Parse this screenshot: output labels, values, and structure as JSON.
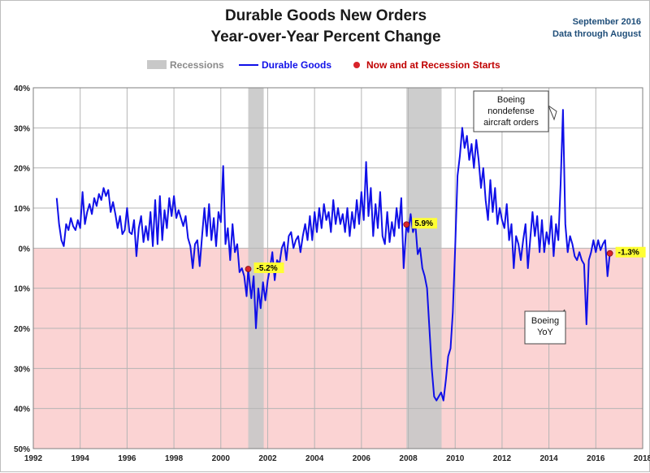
{
  "header": {
    "title_line1": "Durable Goods New Orders",
    "title_line2": "Year-over-Year Percent Change",
    "note_line1": "September 2016",
    "note_line2": "Data through August"
  },
  "legend": {
    "recessions": "Recessions",
    "series": "Durable Goods",
    "markers": "Now and at Recession Starts"
  },
  "colors": {
    "line": "#1010e8",
    "recession": "#c8c8c8",
    "negative_zone": "#fbd3d3",
    "marker": "#d8242a",
    "marker_label_bg": "#ffff33",
    "recession_text": "#8a8a8a",
    "markers_text": "#c00000"
  },
  "chart_data": {
    "type": "line",
    "title": "Durable Goods New Orders Year-over-Year Percent Change",
    "xlim": [
      1992,
      2018
    ],
    "ylim": [
      -50,
      40
    ],
    "x_ticks": [
      "1992",
      "1994",
      "1996",
      "1998",
      "2000",
      "2002",
      "2004",
      "2006",
      "2008",
      "2010",
      "2012",
      "2014",
      "2016",
      "2018"
    ],
    "y_ticks": [
      {
        "value": 40,
        "label": "40%"
      },
      {
        "value": 30,
        "label": "30%"
      },
      {
        "value": 20,
        "label": "20%"
      },
      {
        "value": 10,
        "label": "10%"
      },
      {
        "value": 0,
        "label": "0%"
      },
      {
        "value": -10,
        "label": "10%"
      },
      {
        "value": -20,
        "label": "20%"
      },
      {
        "value": -30,
        "label": "30%"
      },
      {
        "value": -40,
        "label": "40%"
      },
      {
        "value": -50,
        "label": "50%"
      }
    ],
    "grid": true,
    "legend_position": "top-center",
    "recessions": [
      {
        "start": 2001.17,
        "end": 2001.83
      },
      {
        "start": 2007.92,
        "end": 2009.42
      }
    ],
    "series": [
      {
        "name": "Durable Goods",
        "points": [
          [
            1993.0,
            12.5
          ],
          [
            1993.1,
            6
          ],
          [
            1993.2,
            2
          ],
          [
            1993.3,
            0.5
          ],
          [
            1993.4,
            6
          ],
          [
            1993.5,
            4.5
          ],
          [
            1993.6,
            7.5
          ],
          [
            1993.7,
            5.5
          ],
          [
            1993.8,
            4.5
          ],
          [
            1993.9,
            7
          ],
          [
            1994.0,
            5
          ],
          [
            1994.1,
            14
          ],
          [
            1994.2,
            6
          ],
          [
            1994.3,
            9
          ],
          [
            1994.4,
            11
          ],
          [
            1994.5,
            8.5
          ],
          [
            1994.6,
            12.5
          ],
          [
            1994.7,
            10.5
          ],
          [
            1994.8,
            13.5
          ],
          [
            1994.9,
            12
          ],
          [
            1995.0,
            15
          ],
          [
            1995.1,
            13
          ],
          [
            1995.2,
            14.5
          ],
          [
            1995.3,
            9
          ],
          [
            1995.4,
            11.5
          ],
          [
            1995.5,
            8.5
          ],
          [
            1995.6,
            5
          ],
          [
            1995.7,
            8
          ],
          [
            1995.8,
            3.5
          ],
          [
            1995.9,
            4.5
          ],
          [
            1996.0,
            10
          ],
          [
            1996.1,
            4
          ],
          [
            1996.2,
            3.5
          ],
          [
            1996.3,
            7
          ],
          [
            1996.4,
            -2
          ],
          [
            1996.5,
            5
          ],
          [
            1996.6,
            8
          ],
          [
            1996.7,
            1.5
          ],
          [
            1996.8,
            5.5
          ],
          [
            1996.9,
            2
          ],
          [
            1997.0,
            9
          ],
          [
            1997.1,
            0.5
          ],
          [
            1997.2,
            12
          ],
          [
            1997.3,
            1
          ],
          [
            1997.4,
            13
          ],
          [
            1997.5,
            2
          ],
          [
            1997.6,
            9.5
          ],
          [
            1997.7,
            5
          ],
          [
            1997.8,
            12.5
          ],
          [
            1997.9,
            8
          ],
          [
            1998.0,
            13
          ],
          [
            1998.1,
            7.5
          ],
          [
            1998.2,
            9.5
          ],
          [
            1998.3,
            7.5
          ],
          [
            1998.4,
            5.5
          ],
          [
            1998.5,
            8
          ],
          [
            1998.6,
            2.5
          ],
          [
            1998.7,
            0.5
          ],
          [
            1998.8,
            -5
          ],
          [
            1998.9,
            1
          ],
          [
            1999.0,
            2
          ],
          [
            1999.1,
            -4.5
          ],
          [
            1999.2,
            3
          ],
          [
            1999.3,
            10
          ],
          [
            1999.4,
            3
          ],
          [
            1999.5,
            11
          ],
          [
            1999.6,
            2
          ],
          [
            1999.7,
            7.5
          ],
          [
            1999.8,
            0.5
          ],
          [
            1999.9,
            9
          ],
          [
            2000.0,
            6.5
          ],
          [
            2000.1,
            20.5
          ],
          [
            2000.2,
            1
          ],
          [
            2000.3,
            5
          ],
          [
            2000.4,
            -3
          ],
          [
            2000.5,
            6
          ],
          [
            2000.6,
            -1
          ],
          [
            2000.7,
            1
          ],
          [
            2000.8,
            -6
          ],
          [
            2000.9,
            -5
          ],
          [
            2001.0,
            -7
          ],
          [
            2001.1,
            -12
          ],
          [
            2001.17,
            -5.2
          ],
          [
            2001.3,
            -12.5
          ],
          [
            2001.4,
            -7
          ],
          [
            2001.5,
            -20
          ],
          [
            2001.6,
            -10
          ],
          [
            2001.7,
            -15
          ],
          [
            2001.8,
            -8.5
          ],
          [
            2001.9,
            -13
          ],
          [
            2002.0,
            -8
          ],
          [
            2002.1,
            -5
          ],
          [
            2002.2,
            -1
          ],
          [
            2002.3,
            -8
          ],
          [
            2002.4,
            -3
          ],
          [
            2002.5,
            -4
          ],
          [
            2002.6,
            0
          ],
          [
            2002.7,
            1.5
          ],
          [
            2002.8,
            -3
          ],
          [
            2002.9,
            3
          ],
          [
            2003.0,
            4
          ],
          [
            2003.1,
            0
          ],
          [
            2003.2,
            2
          ],
          [
            2003.3,
            3
          ],
          [
            2003.4,
            -1
          ],
          [
            2003.5,
            3
          ],
          [
            2003.6,
            6
          ],
          [
            2003.7,
            2
          ],
          [
            2003.8,
            8
          ],
          [
            2003.9,
            2
          ],
          [
            2004.0,
            9
          ],
          [
            2004.1,
            4
          ],
          [
            2004.2,
            10
          ],
          [
            2004.3,
            5
          ],
          [
            2004.4,
            11
          ],
          [
            2004.5,
            7
          ],
          [
            2004.6,
            9
          ],
          [
            2004.7,
            4
          ],
          [
            2004.8,
            12
          ],
          [
            2004.9,
            6
          ],
          [
            2005.0,
            10
          ],
          [
            2005.1,
            6
          ],
          [
            2005.2,
            8.5
          ],
          [
            2005.3,
            4
          ],
          [
            2005.4,
            10
          ],
          [
            2005.5,
            3
          ],
          [
            2005.6,
            9
          ],
          [
            2005.7,
            5
          ],
          [
            2005.8,
            12
          ],
          [
            2005.9,
            6
          ],
          [
            2006.0,
            14
          ],
          [
            2006.1,
            7
          ],
          [
            2006.2,
            21.5
          ],
          [
            2006.3,
            8
          ],
          [
            2006.4,
            15
          ],
          [
            2006.5,
            3
          ],
          [
            2006.6,
            11
          ],
          [
            2006.7,
            5
          ],
          [
            2006.8,
            14
          ],
          [
            2006.9,
            3
          ],
          [
            2007.0,
            1
          ],
          [
            2007.1,
            9
          ],
          [
            2007.2,
            1.5
          ],
          [
            2007.3,
            6.5
          ],
          [
            2007.4,
            3
          ],
          [
            2007.5,
            10
          ],
          [
            2007.6,
            5
          ],
          [
            2007.7,
            12.5
          ],
          [
            2007.8,
            -5
          ],
          [
            2007.92,
            5.9
          ],
          [
            2008.0,
            4
          ],
          [
            2008.1,
            8.5
          ],
          [
            2008.2,
            4
          ],
          [
            2008.3,
            6
          ],
          [
            2008.4,
            -1.5
          ],
          [
            2008.5,
            0
          ],
          [
            2008.6,
            -5
          ],
          [
            2008.7,
            -7
          ],
          [
            2008.8,
            -10
          ],
          [
            2008.9,
            -20
          ],
          [
            2009.0,
            -30
          ],
          [
            2009.1,
            -37
          ],
          [
            2009.2,
            -38
          ],
          [
            2009.3,
            -37
          ],
          [
            2009.4,
            -36
          ],
          [
            2009.5,
            -38
          ],
          [
            2009.6,
            -33
          ],
          [
            2009.7,
            -27
          ],
          [
            2009.8,
            -25
          ],
          [
            2009.9,
            -16
          ],
          [
            2010.0,
            0
          ],
          [
            2010.1,
            18
          ],
          [
            2010.2,
            23
          ],
          [
            2010.3,
            30
          ],
          [
            2010.4,
            25
          ],
          [
            2010.5,
            28
          ],
          [
            2010.6,
            22
          ],
          [
            2010.7,
            26
          ],
          [
            2010.8,
            20
          ],
          [
            2010.9,
            27
          ],
          [
            2011.0,
            22
          ],
          [
            2011.1,
            15
          ],
          [
            2011.2,
            20
          ],
          [
            2011.3,
            12
          ],
          [
            2011.4,
            7
          ],
          [
            2011.5,
            17
          ],
          [
            2011.6,
            9
          ],
          [
            2011.7,
            15
          ],
          [
            2011.8,
            6
          ],
          [
            2011.9,
            10
          ],
          [
            2012.0,
            7
          ],
          [
            2012.1,
            5
          ],
          [
            2012.2,
            11
          ],
          [
            2012.3,
            2
          ],
          [
            2012.4,
            6
          ],
          [
            2012.5,
            -5
          ],
          [
            2012.6,
            3
          ],
          [
            2012.7,
            1
          ],
          [
            2012.8,
            -3
          ],
          [
            2012.9,
            2
          ],
          [
            2013.0,
            6
          ],
          [
            2013.1,
            -5
          ],
          [
            2013.2,
            2
          ],
          [
            2013.3,
            9
          ],
          [
            2013.4,
            3
          ],
          [
            2013.5,
            8
          ],
          [
            2013.6,
            -1
          ],
          [
            2013.7,
            7
          ],
          [
            2013.8,
            -1
          ],
          [
            2013.9,
            4
          ],
          [
            2014.0,
            1
          ],
          [
            2014.1,
            8
          ],
          [
            2014.2,
            -2
          ],
          [
            2014.3,
            6
          ],
          [
            2014.4,
            2
          ],
          [
            2014.5,
            16
          ],
          [
            2014.6,
            34.5
          ],
          [
            2014.7,
            6
          ],
          [
            2014.8,
            -1
          ],
          [
            2014.9,
            3
          ],
          [
            2015.0,
            1
          ],
          [
            2015.1,
            -2
          ],
          [
            2015.2,
            -3
          ],
          [
            2015.3,
            -1
          ],
          [
            2015.4,
            -3
          ],
          [
            2015.5,
            -4
          ],
          [
            2015.6,
            -19
          ],
          [
            2015.7,
            -3
          ],
          [
            2015.8,
            -1
          ],
          [
            2015.9,
            2
          ],
          [
            2016.0,
            -1
          ],
          [
            2016.1,
            2
          ],
          [
            2016.2,
            -0.5
          ],
          [
            2016.3,
            1
          ],
          [
            2016.4,
            2
          ],
          [
            2016.5,
            -7
          ],
          [
            2016.6,
            -1.3
          ]
        ]
      }
    ],
    "markers": [
      {
        "x": 2001.17,
        "y": -5.2,
        "label": "-5.2%"
      },
      {
        "x": 2007.92,
        "y": 5.9,
        "label": "5.9%"
      },
      {
        "x": 2016.6,
        "y": -1.3,
        "label": "-1.3%"
      }
    ],
    "annotations": [
      {
        "lines": [
          "Boeing",
          "nondefense",
          "aircraft orders"
        ]
      },
      {
        "lines": [
          "Boeing",
          "YoY"
        ]
      }
    ]
  }
}
